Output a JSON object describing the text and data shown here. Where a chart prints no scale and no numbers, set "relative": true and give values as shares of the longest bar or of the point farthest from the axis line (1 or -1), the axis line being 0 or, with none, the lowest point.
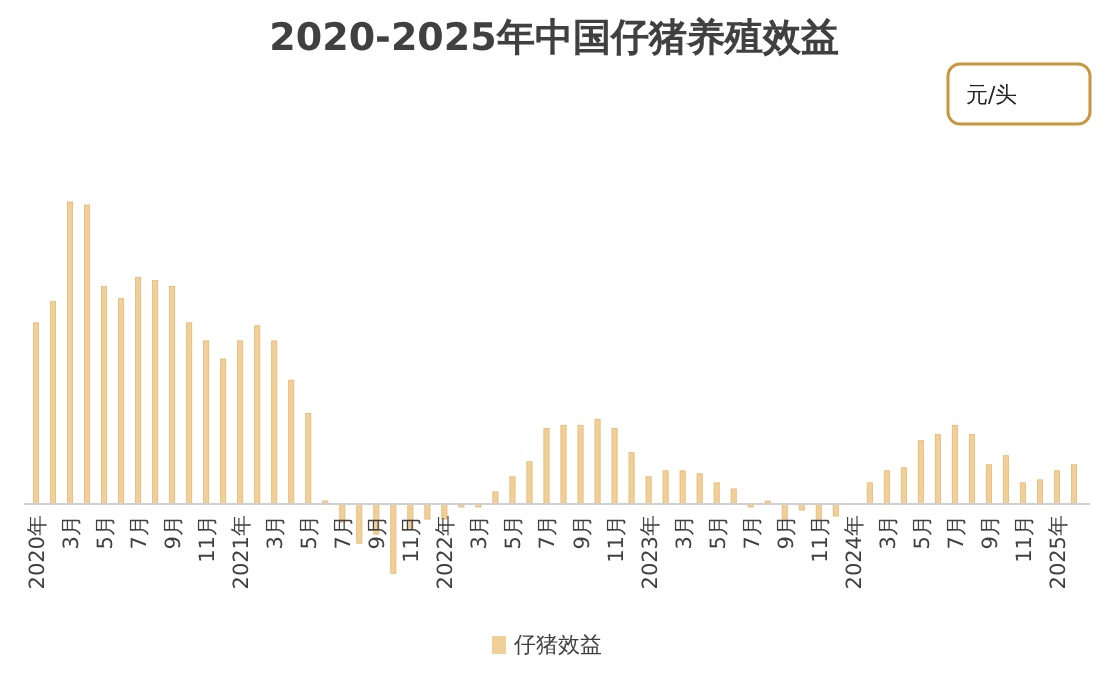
{
  "chart_data": {
    "type": "bar",
    "title": "2020-2025年中国仔猪养殖效益",
    "relative": true,
    "legend": "bottom",
    "annotations": [
      "元/头"
    ],
    "categories": [
      "2020年",
      null,
      "3月",
      null,
      "5月",
      null,
      "7月",
      null,
      "9月",
      null,
      "11月",
      null,
      "2021年",
      null,
      "3月",
      null,
      "5月",
      null,
      "7月",
      null,
      "9月",
      null,
      "11月",
      null,
      "2022年",
      null,
      "3月",
      null,
      "5月",
      null,
      "7月",
      null,
      "9月",
      null,
      "11月",
      null,
      "2023年",
      null,
      "3月",
      null,
      "5月",
      null,
      "7月",
      null,
      "9月",
      null,
      "11月",
      null,
      "2024年",
      null,
      "3月",
      null,
      "5月",
      null,
      "7月",
      null,
      "9月",
      null,
      "11月",
      null,
      "2025年",
      null
    ],
    "series": [
      {
        "name": "仔猪效益",
        "color": "#f0cf98",
        "values": [
          0.6,
          0.67,
          1.0,
          0.99,
          0.72,
          0.68,
          0.75,
          0.74,
          0.72,
          0.6,
          0.54,
          0.48,
          0.54,
          0.59,
          0.54,
          0.41,
          0.3,
          0.01,
          -0.06,
          -0.13,
          -0.1,
          -0.23,
          -0.08,
          -0.05,
          -0.05,
          -0.01,
          -0.01,
          0.04,
          0.09,
          0.14,
          0.25,
          0.26,
          0.26,
          0.28,
          0.25,
          0.17,
          0.09,
          0.11,
          0.11,
          0.1,
          0.07,
          0.05,
          -0.01,
          0.01,
          -0.05,
          -0.02,
          -0.05,
          -0.04,
          0.0,
          0.07,
          0.11,
          0.12,
          0.21,
          0.23,
          0.26,
          0.23,
          0.13,
          0.16,
          0.07,
          0.08,
          0.11,
          0.13
        ]
      }
    ]
  }
}
